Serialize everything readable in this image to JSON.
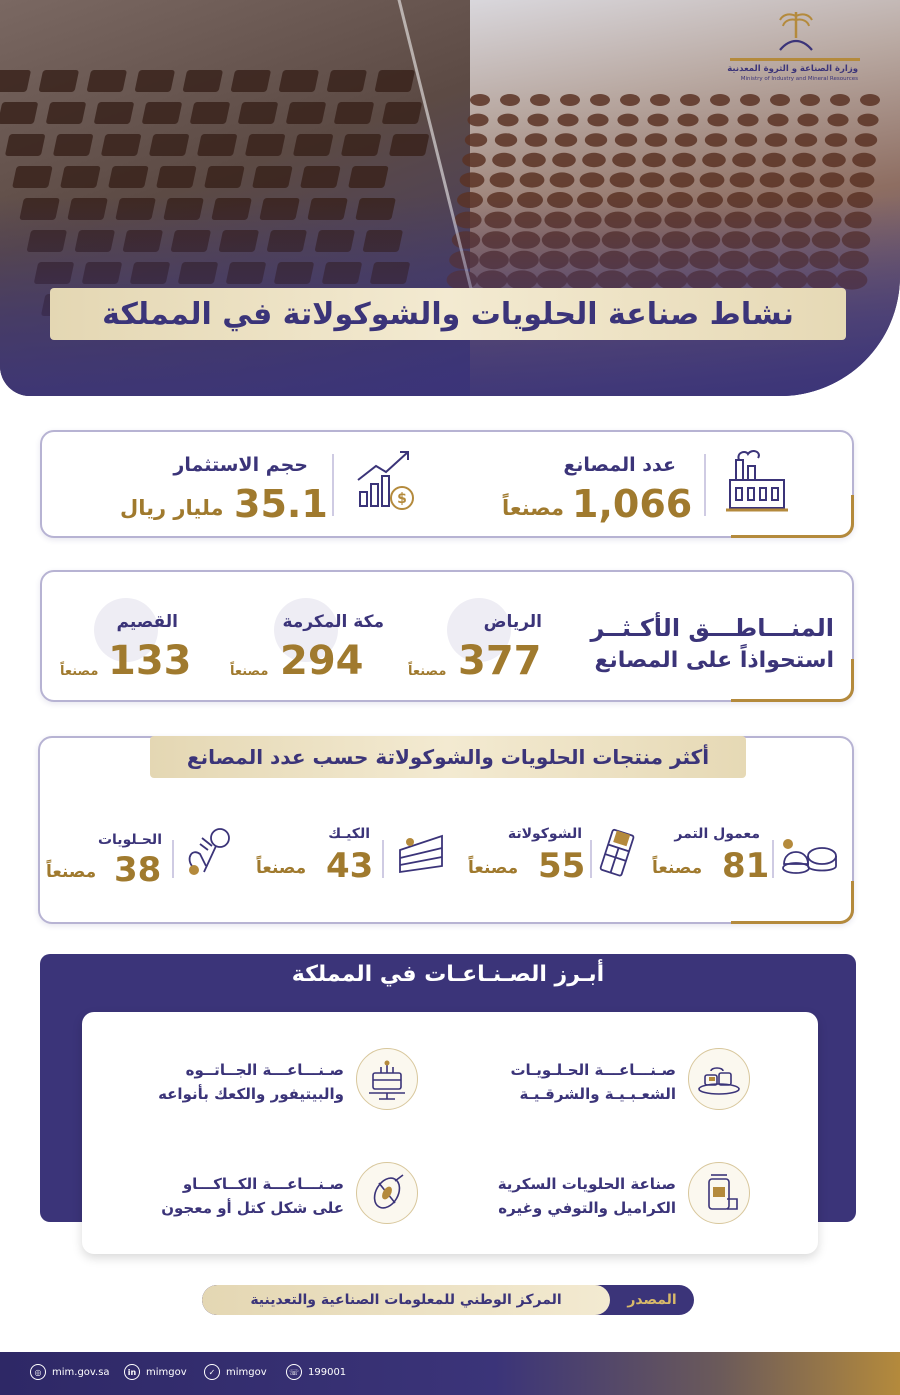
{
  "header": {
    "title": "نشاط صناعة الحلويات والشوكولاتة في المملكة",
    "logo_ar": "وزارة الصناعة و الثروة المعدنية",
    "logo_en": "Ministry of Industry and Mineral Resources"
  },
  "stats": {
    "factories": {
      "label": "عدد المصانع",
      "value": "1,066",
      "unit": "مصنعاً",
      "icon": "factory-icon"
    },
    "investment": {
      "label": "حجم الاستثمار",
      "value": "35.1",
      "unit": "مليار ريال",
      "icon": "growth-chart-icon"
    }
  },
  "regions": {
    "title_line1": "المنـــاطـــق الأكـثــر",
    "title_line2": "استحواذاً على المصانع",
    "items": [
      {
        "name": "الرياض",
        "value": "377",
        "unit": "مصنعاً"
      },
      {
        "name": "مكة المكرمة",
        "value": "294",
        "unit": "مصنعاً"
      },
      {
        "name": "القصيم",
        "value": "133",
        "unit": "مصنعاً"
      }
    ]
  },
  "products": {
    "title": "أكثر منتجات الحلويات والشوكولاتة حسب عدد المصانع",
    "items": [
      {
        "name": "معمول التمر",
        "value": "81",
        "unit": "مصنعاً",
        "icon": "maamoul-icon"
      },
      {
        "name": "الشوكولاتة",
        "value": "55",
        "unit": "مصنعاً",
        "icon": "chocolate-bar-icon"
      },
      {
        "name": "الكيـك",
        "value": "43",
        "unit": "مصنعاً",
        "icon": "cake-slice-icon"
      },
      {
        "name": "الحـلويات",
        "value": "38",
        "unit": "مصنعاً",
        "icon": "candy-icon"
      }
    ]
  },
  "industries": {
    "title": "أبـرز الصـنـاعـات في المملكة",
    "items": [
      {
        "line1": "صـنـــاعـــة الحـلـويـات",
        "line2": "الشعـبـيـة والشرقـيـة",
        "icon": "sweets-plate-icon"
      },
      {
        "line1": "صـنـــاعـــة الجــاتــوه",
        "line2": "والبيتيفور والكعك بأنواعه",
        "icon": "layer-cake-icon"
      },
      {
        "line1": "صناعة الحلويات السكرية",
        "line2": "الكراميل والتوفي وغيره",
        "icon": "candy-jar-icon"
      },
      {
        "line1": "صـنـــاعـــة الكــاكـــاو",
        "line2": "على شكل كتل أو معجون",
        "icon": "cocoa-pod-icon"
      }
    ]
  },
  "source": {
    "label": "المصدر",
    "text": "المركز الوطني للمعلومات الصناعية والتعدينية"
  },
  "footer": {
    "website": "mim.gov.sa",
    "linkedin": "mimgov",
    "twitter": "mimgov",
    "phone": "199001"
  },
  "colors": {
    "navy": "#3b3479",
    "gold": "#a07a2e",
    "cream": "#f3ead1"
  }
}
